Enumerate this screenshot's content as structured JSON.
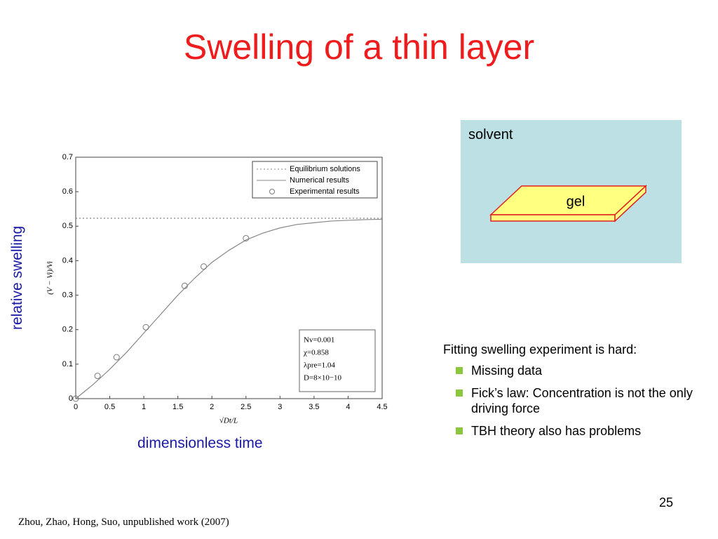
{
  "title": "Swelling of a thin layer",
  "side_y_label": "relative swelling",
  "side_x_label": "dimensionless time",
  "diagram": {
    "outer": "solvent",
    "inner": "gel"
  },
  "notes": {
    "heading": "Fitting swelling experiment is hard:",
    "bullets": [
      "Missing data",
      "Fick’s law:  Concentration is not the only driving force",
      "TBH theory also has problems"
    ]
  },
  "page_number": "25",
  "citation": "Zhou, Zhao, Hong, Suo, unpublished work (2007)",
  "chart_data": {
    "type": "line",
    "x_label": "√Dt/L",
    "y_label": "(V − Vi)/Vi",
    "xlim": [
      0,
      4.5
    ],
    "ylim": [
      0,
      0.7
    ],
    "xticks": [
      0,
      0.5,
      1,
      1.5,
      2,
      2.5,
      3,
      3.5,
      4,
      4.5
    ],
    "yticks": [
      0,
      0.1,
      0.2,
      0.3,
      0.4,
      0.5,
      0.6,
      0.7
    ],
    "annotations": [
      "Nv=0.001",
      "χ=0.858",
      "λpre=1.04",
      "D=8×10−10"
    ],
    "series": [
      {
        "name": "Equilibrium solutions",
        "color": "#888888",
        "style": "dotted",
        "x": [
          0,
          4.5
        ],
        "values": [
          0.523,
          0.523
        ]
      },
      {
        "name": "Numerical results",
        "color": "#888888",
        "style": "solid",
        "x": [
          0,
          0.25,
          0.5,
          0.75,
          1,
          1.25,
          1.5,
          1.75,
          2,
          2.25,
          2.5,
          2.75,
          3,
          3.25,
          3.5,
          3.75,
          4,
          4.25,
          4.5
        ],
        "values": [
          0,
          0.04,
          0.085,
          0.135,
          0.19,
          0.245,
          0.3,
          0.35,
          0.395,
          0.43,
          0.46,
          0.48,
          0.495,
          0.505,
          0.51,
          0.515,
          0.517,
          0.519,
          0.52
        ]
      },
      {
        "name": "Experimental results",
        "color": "#777777",
        "style": "marker",
        "x": [
          0,
          0.32,
          0.6,
          1.03,
          1.6,
          1.88,
          2.5
        ],
        "values": [
          0,
          0.066,
          0.12,
          0.207,
          0.327,
          0.383,
          0.465
        ]
      }
    ]
  }
}
